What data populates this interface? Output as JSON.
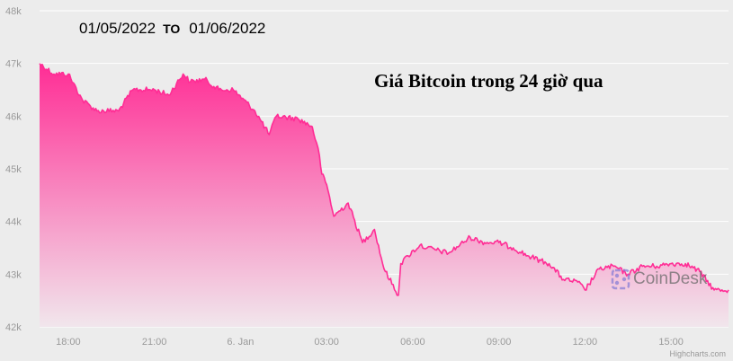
{
  "header": {
    "date_from": "01/05/2022",
    "date_to_word": "TO",
    "date_to": "01/06/2022"
  },
  "overlay_title": "Giá Bitcoin trong 24 giờ qua",
  "watermark": "CoinDesk",
  "credit": "Highcharts.com",
  "colors": {
    "line": "#ff2d95",
    "fill_top": "#ff2d95",
    "fill_bottom": "#f1e6ec",
    "background": "#ececec",
    "grid": "#ffffff"
  },
  "chart_data": {
    "type": "area",
    "title": "",
    "xlabel": "",
    "ylabel": "",
    "ylim": [
      42000,
      48000
    ],
    "y_ticks": [
      42000,
      43000,
      44000,
      45000,
      46000,
      47000,
      48000
    ],
    "y_tick_labels": [
      "42k",
      "43k",
      "44k",
      "45k",
      "46k",
      "47k",
      "48k"
    ],
    "x_start": "2022-01-05 17:00",
    "x_end": "2022-01-06 17:00",
    "x_ticks": [
      "2022-01-05 18:00",
      "2022-01-05 21:00",
      "2022-01-06 00:00",
      "2022-01-06 03:00",
      "2022-01-06 06:00",
      "2022-01-06 09:00",
      "2022-01-06 12:00",
      "2022-01-06 15:00"
    ],
    "x_tick_labels": [
      "18:00",
      "21:00",
      "6. Jan",
      "03:00",
      "06:00",
      "09:00",
      "12:00",
      "15:00"
    ],
    "grid": true,
    "series": [
      {
        "x": [
          "2022-01-05 17:00",
          "2022-01-05 17:30",
          "2022-01-05 18:00",
          "2022-01-05 18:30",
          "2022-01-05 19:00",
          "2022-01-05 19:45",
          "2022-01-05 20:15",
          "2022-01-05 21:00",
          "2022-01-05 21:30",
          "2022-01-05 22:00",
          "2022-01-05 22:15",
          "2022-01-05 22:45",
          "2022-01-05 23:15",
          "2022-01-05 23:45",
          "2022-01-06 00:30",
          "2022-01-06 01:00",
          "2022-01-06 01:15",
          "2022-01-06 02:00",
          "2022-01-06 02:30",
          "2022-01-06 02:45",
          "2022-01-06 02:50",
          "2022-01-06 03:00",
          "2022-01-06 03:15",
          "2022-01-06 03:45",
          "2022-01-06 04:15",
          "2022-01-06 04:40",
          "2022-01-06 05:00",
          "2022-01-06 05:30",
          "2022-01-06 05:35",
          "2022-01-06 05:50",
          "2022-01-06 06:15",
          "2022-01-06 06:30",
          "2022-01-06 07:15",
          "2022-01-06 08:00",
          "2022-01-06 08:30",
          "2022-01-06 09:00",
          "2022-01-06 09:30",
          "2022-01-06 10:00",
          "2022-01-06 10:45",
          "2022-01-06 11:15",
          "2022-01-06 11:45",
          "2022-01-06 12:00",
          "2022-01-06 12:30",
          "2022-01-06 13:00",
          "2022-01-06 13:30",
          "2022-01-06 14:00",
          "2022-01-06 14:30",
          "2022-01-06 15:00",
          "2022-01-06 15:30",
          "2022-01-06 16:00",
          "2022-01-06 16:30",
          "2022-01-06 17:00"
        ],
        "y": [
          47000,
          46800,
          46800,
          46300,
          46100,
          46100,
          46500,
          46500,
          46400,
          46800,
          46650,
          46700,
          46500,
          46500,
          46100,
          45650,
          46000,
          45950,
          45800,
          45250,
          44900,
          44700,
          44100,
          44350,
          43600,
          43850,
          43100,
          42600,
          43200,
          43350,
          43550,
          43500,
          43400,
          43700,
          43600,
          43600,
          43500,
          43350,
          43200,
          42900,
          42850,
          42700,
          43100,
          43150,
          43000,
          43150,
          43150,
          43200,
          43200,
          43050,
          42700,
          42700
        ]
      }
    ]
  }
}
